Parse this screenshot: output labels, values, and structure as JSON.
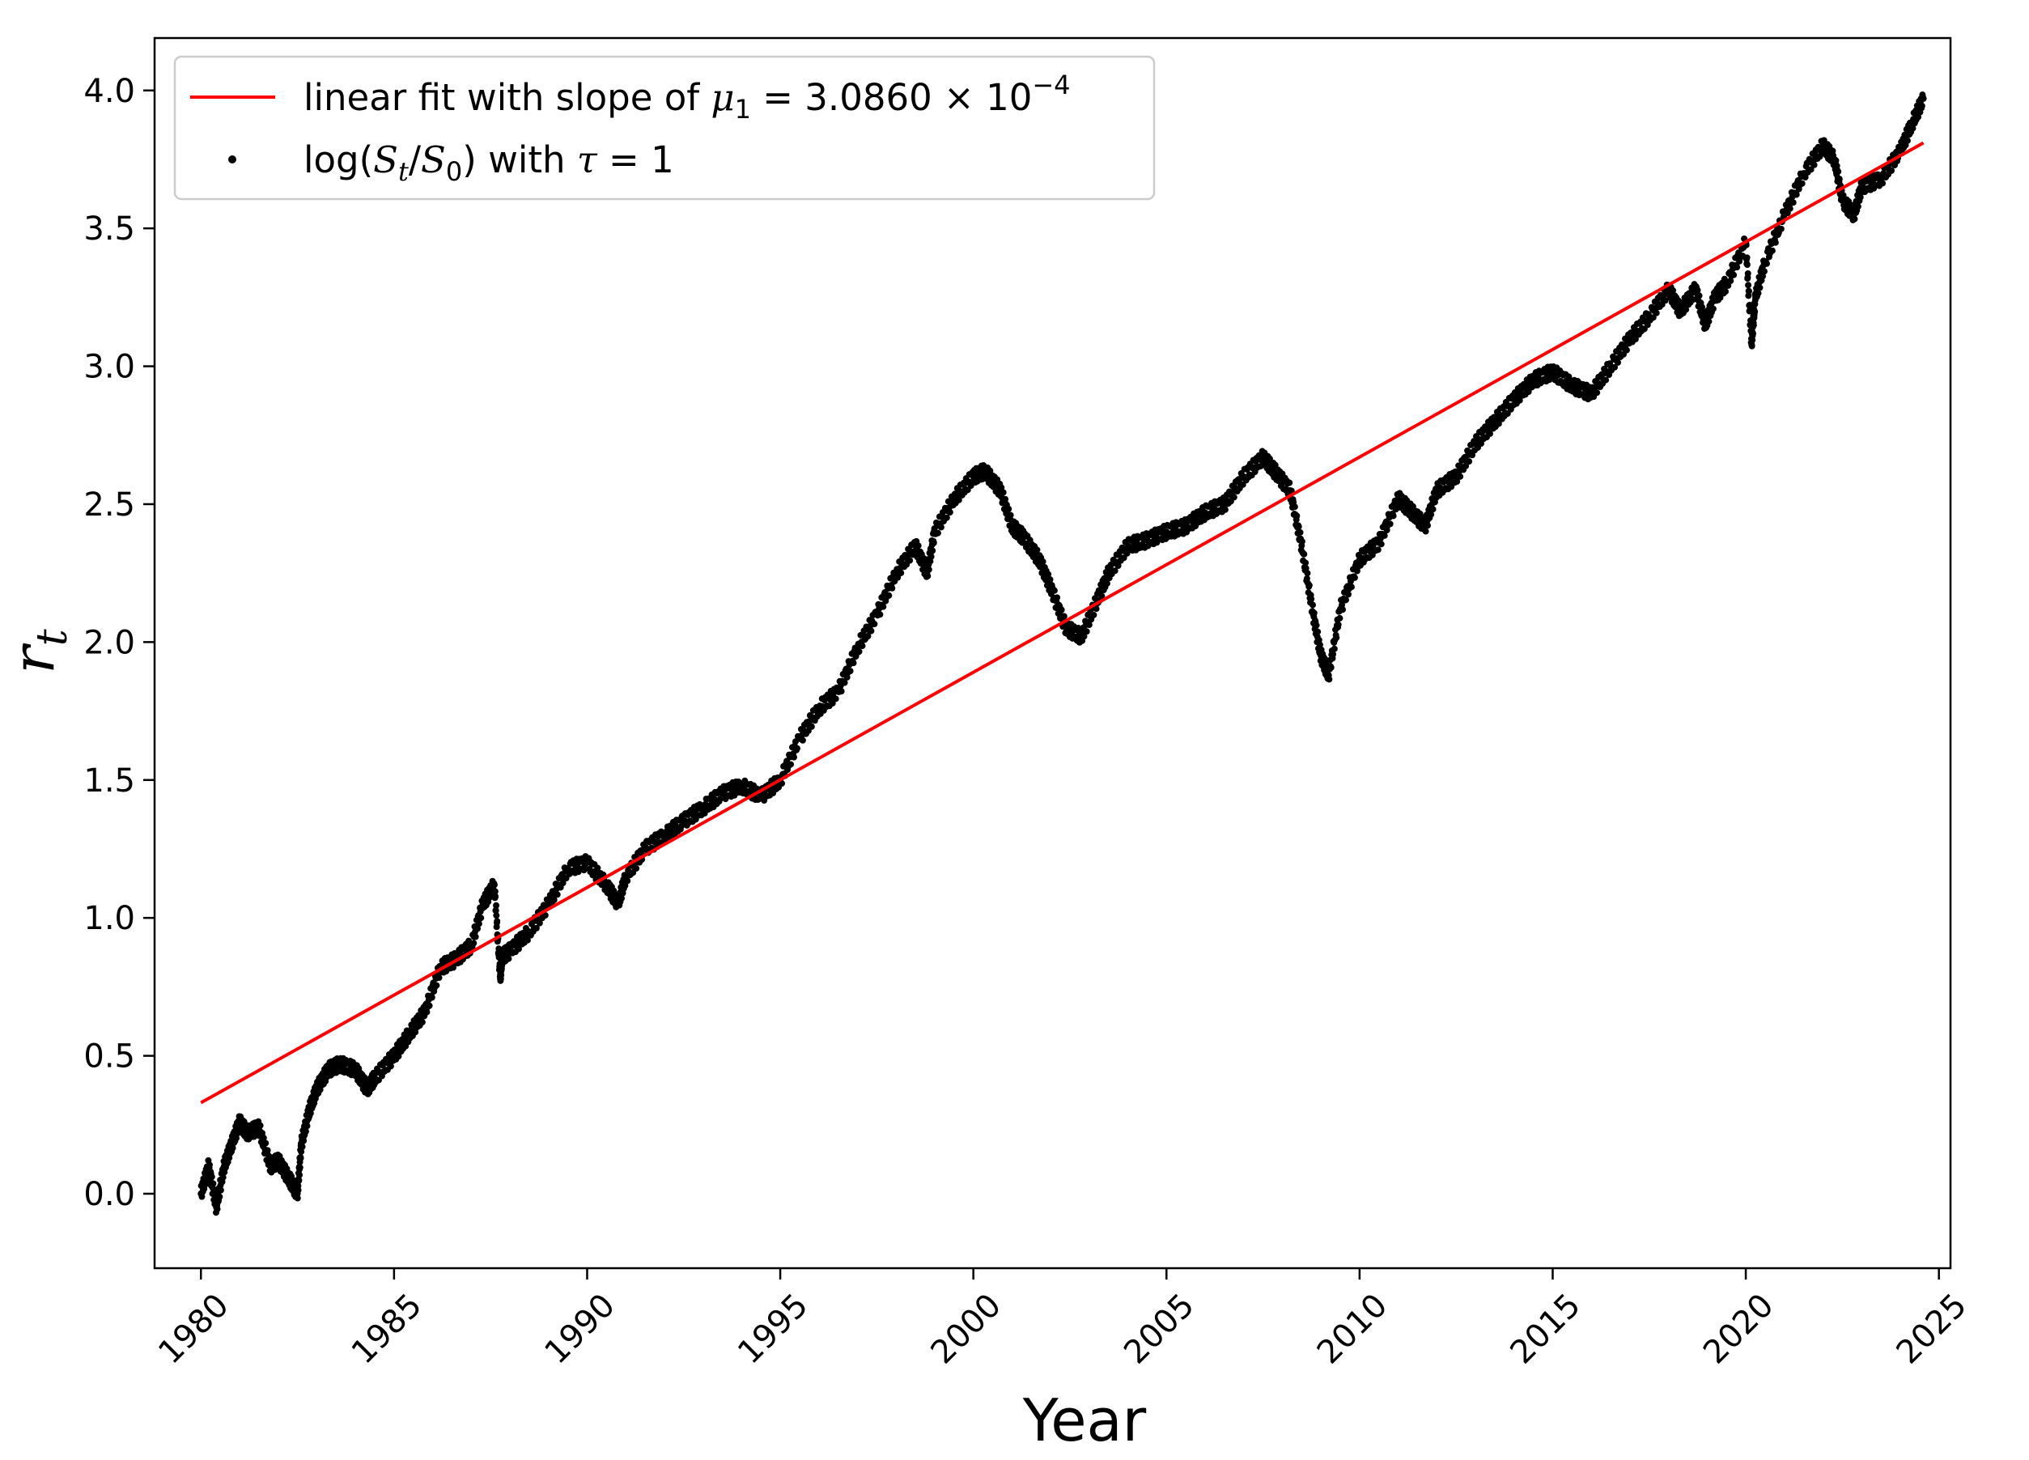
{
  "chart_data": {
    "type": "scatter",
    "title": "",
    "xlabel": "Year",
    "ylabel": "r_t",
    "ylabel_base": "r",
    "ylabel_sub": "t",
    "xlim": [
      1978.8,
      2025.3
    ],
    "ylim": [
      -0.27,
      4.19
    ],
    "x_ticks": [
      1980,
      1985,
      1990,
      1995,
      2000,
      2005,
      2010,
      2015,
      2020,
      2025
    ],
    "y_ticks": [
      0.0,
      0.5,
      1.0,
      1.5,
      2.0,
      2.5,
      3.0,
      3.5,
      4.0
    ],
    "x_tick_labels": [
      "1980",
      "1985",
      "1990",
      "1995",
      "2000",
      "2005",
      "2010",
      "2015",
      "2020",
      "2025"
    ],
    "y_tick_labels": [
      "0.0",
      "0.5",
      "1.0",
      "1.5",
      "2.0",
      "2.5",
      "3.0",
      "3.5",
      "4.0"
    ],
    "legend_position": "upper-left",
    "series": [
      {
        "name": "linear fit with slope of μ1 = 3.0860 × 10^-4",
        "kind": "line",
        "color": "#ff0000",
        "x": [
          1980.0,
          2024.6
        ],
        "y": [
          0.33,
          3.81
        ]
      },
      {
        "name": "log(St/S0) with τ = 1",
        "kind": "scatter",
        "color": "#000000",
        "x": [
          1980.0,
          1980.2,
          1980.4,
          1980.6,
          1980.8,
          1981.0,
          1981.2,
          1981.5,
          1981.8,
          1982.0,
          1982.3,
          1982.5,
          1982.6,
          1982.8,
          1983.0,
          1983.3,
          1983.6,
          1984.0,
          1984.3,
          1984.5,
          1985.0,
          1985.4,
          1985.8,
          1986.2,
          1986.6,
          1987.0,
          1987.3,
          1987.6,
          1987.75,
          1987.8,
          1988.0,
          1988.5,
          1989.0,
          1989.5,
          1990.0,
          1990.5,
          1990.8,
          1991.0,
          1991.5,
          1992.0,
          1992.5,
          1993.0,
          1993.5,
          1994.0,
          1994.5,
          1995.0,
          1995.5,
          1996.0,
          1996.5,
          1997.0,
          1997.5,
          1998.0,
          1998.5,
          1998.8,
          1999.0,
          1999.5,
          2000.0,
          2000.3,
          2000.7,
          2001.0,
          2001.3,
          2001.7,
          2002.0,
          2002.4,
          2002.8,
          2003.2,
          2003.5,
          2004.0,
          2004.5,
          2005.0,
          2005.5,
          2006.0,
          2006.5,
          2007.0,
          2007.5,
          2007.8,
          2008.2,
          2008.5,
          2008.8,
          2009.0,
          2009.2,
          2009.5,
          2010.0,
          2010.5,
          2011.0,
          2011.3,
          2011.7,
          2012.0,
          2012.5,
          2013.0,
          2013.5,
          2014.0,
          2014.5,
          2015.0,
          2015.5,
          2016.0,
          2016.5,
          2017.0,
          2017.5,
          2018.0,
          2018.3,
          2018.7,
          2018.95,
          2019.2,
          2019.5,
          2020.0,
          2020.15,
          2020.25,
          2020.5,
          2021.0,
          2021.5,
          2022.0,
          2022.3,
          2022.5,
          2022.8,
          2023.0,
          2023.5,
          2024.0,
          2024.3,
          2024.6
        ],
        "y": [
          0.0,
          0.1,
          -0.05,
          0.1,
          0.18,
          0.26,
          0.22,
          0.24,
          0.1,
          0.12,
          0.05,
          0.0,
          0.18,
          0.3,
          0.38,
          0.45,
          0.47,
          0.45,
          0.38,
          0.42,
          0.5,
          0.58,
          0.66,
          0.82,
          0.85,
          0.9,
          1.05,
          1.12,
          0.78,
          0.86,
          0.88,
          0.95,
          1.05,
          1.18,
          1.2,
          1.12,
          1.05,
          1.15,
          1.25,
          1.3,
          1.35,
          1.4,
          1.45,
          1.48,
          1.44,
          1.5,
          1.65,
          1.76,
          1.82,
          1.98,
          2.1,
          2.25,
          2.35,
          2.25,
          2.4,
          2.52,
          2.6,
          2.62,
          2.55,
          2.42,
          2.38,
          2.3,
          2.2,
          2.05,
          2.02,
          2.15,
          2.25,
          2.35,
          2.37,
          2.4,
          2.42,
          2.47,
          2.5,
          2.6,
          2.67,
          2.62,
          2.55,
          2.35,
          2.1,
          1.95,
          1.88,
          2.12,
          2.3,
          2.36,
          2.52,
          2.48,
          2.42,
          2.55,
          2.6,
          2.72,
          2.8,
          2.88,
          2.95,
          2.98,
          2.93,
          2.9,
          3.0,
          3.1,
          3.18,
          3.28,
          3.2,
          3.28,
          3.15,
          3.25,
          3.3,
          3.45,
          3.08,
          3.25,
          3.38,
          3.55,
          3.7,
          3.8,
          3.75,
          3.6,
          3.55,
          3.65,
          3.68,
          3.78,
          3.88,
          3.97
        ]
      }
    ]
  },
  "legend": {
    "fit_text_prefix": "linear fit with slope of ",
    "fit_mu": "μ",
    "fit_mu_sub": "1",
    "fit_equals": " = 3.0860 × 10",
    "fit_exp": "−4",
    "data_log": "log(",
    "data_S": "S",
    "data_t_sub": "t",
    "data_slash": "/",
    "data_S0": "S",
    "data_0_sub": "0",
    "data_close": ") with ",
    "data_tau": "τ",
    "data_eq": " = 1"
  },
  "colors": {
    "fit": "#ff0000",
    "data": "#000000",
    "legend_border": "#cccccc"
  }
}
